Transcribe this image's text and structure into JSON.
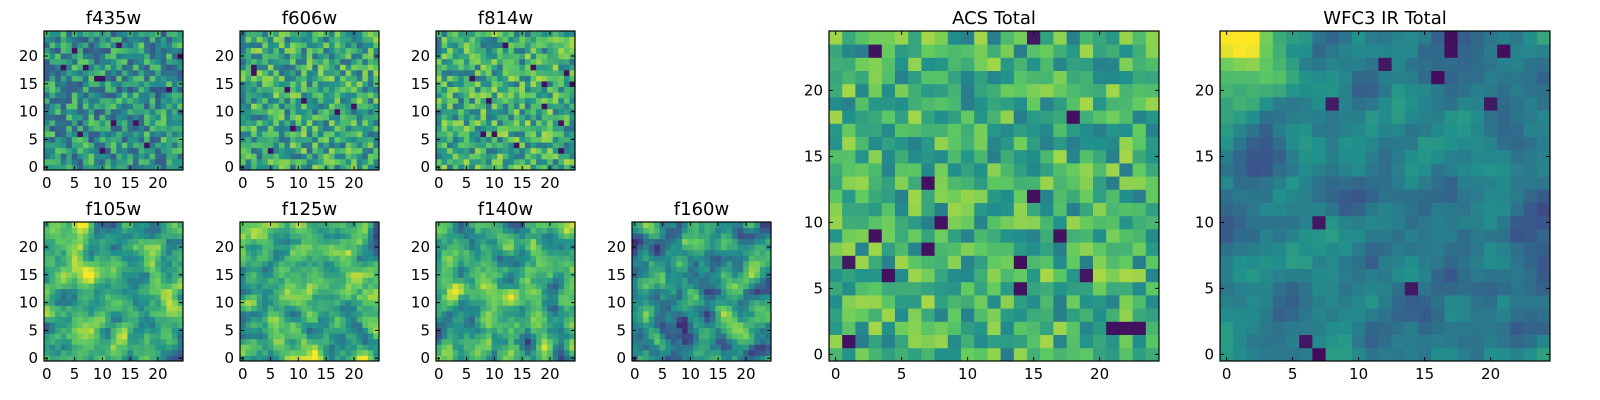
{
  "figure": {
    "colormap": "viridis",
    "colors": [
      "#440154",
      "#3b528b",
      "#21918c",
      "#5ec962",
      "#fde725"
    ]
  },
  "chart_data": [
    {
      "id": "f435w",
      "type": "heatmap",
      "title": "f435w",
      "grid_size": 25,
      "xlim": [
        0,
        25
      ],
      "ylim": [
        0,
        25
      ],
      "xticks": [
        "0",
        "5",
        "10",
        "15",
        "20"
      ],
      "yticks": [
        "0",
        "5",
        "10",
        "15",
        "20"
      ],
      "mean": 0.52,
      "spread": 0.16,
      "smooth": 0,
      "pattern": "noise",
      "seed": 11
    },
    {
      "id": "f606w",
      "type": "heatmap",
      "title": "f606w",
      "grid_size": 25,
      "xlim": [
        0,
        25
      ],
      "ylim": [
        0,
        25
      ],
      "xticks": [
        "0",
        "5",
        "10",
        "15",
        "20"
      ],
      "yticks": [
        "0",
        "5",
        "10",
        "15",
        "20"
      ],
      "mean": 0.6,
      "spread": 0.16,
      "smooth": 0,
      "pattern": "noise",
      "seed": 23
    },
    {
      "id": "f814w",
      "type": "heatmap",
      "title": "f814w",
      "grid_size": 25,
      "xlim": [
        0,
        25
      ],
      "ylim": [
        0,
        25
      ],
      "xticks": [
        "0",
        "5",
        "10",
        "15",
        "20"
      ],
      "yticks": [
        "0",
        "5",
        "10",
        "15",
        "20"
      ],
      "mean": 0.62,
      "spread": 0.16,
      "smooth": 0,
      "pattern": "noise",
      "seed": 37
    },
    {
      "id": "f105w",
      "type": "heatmap",
      "title": "f105w",
      "grid_size": 25,
      "xlim": [
        0,
        25
      ],
      "ylim": [
        0,
        25
      ],
      "xticks": [
        "0",
        "5",
        "10",
        "15",
        "20"
      ],
      "yticks": [
        "0",
        "5",
        "10",
        "15",
        "20"
      ],
      "mean": 0.62,
      "spread": 0.2,
      "smooth": 1,
      "pattern": "noise",
      "seed": 41
    },
    {
      "id": "f125w",
      "type": "heatmap",
      "title": "f125w",
      "grid_size": 25,
      "xlim": [
        0,
        25
      ],
      "ylim": [
        0,
        25
      ],
      "xticks": [
        "0",
        "5",
        "10",
        "15",
        "20"
      ],
      "yticks": [
        "0",
        "5",
        "10",
        "15",
        "20"
      ],
      "mean": 0.64,
      "spread": 0.2,
      "smooth": 1,
      "pattern": "noise",
      "seed": 53
    },
    {
      "id": "f140w",
      "type": "heatmap",
      "title": "f140w",
      "grid_size": 25,
      "xlim": [
        0,
        25
      ],
      "ylim": [
        0,
        25
      ],
      "xticks": [
        "0",
        "5",
        "10",
        "15",
        "20"
      ],
      "yticks": [
        "0",
        "5",
        "10",
        "15",
        "20"
      ],
      "mean": 0.6,
      "spread": 0.22,
      "smooth": 1,
      "pattern": "noise",
      "seed": 67
    },
    {
      "id": "f160w",
      "type": "heatmap",
      "title": "f160w",
      "grid_size": 25,
      "xlim": [
        0,
        25
      ],
      "ylim": [
        0,
        25
      ],
      "xticks": [
        "0",
        "5",
        "10",
        "15",
        "20"
      ],
      "yticks": [
        "0",
        "5",
        "10",
        "15",
        "20"
      ],
      "mean": 0.5,
      "spread": 0.22,
      "smooth": 1,
      "pattern": "noise",
      "seed": 79
    },
    {
      "id": "acs-total",
      "type": "heatmap",
      "title": "ACS Total",
      "grid_size": 25,
      "xlim": [
        0,
        25
      ],
      "ylim": [
        0,
        25
      ],
      "xticks": [
        "0",
        "5",
        "10",
        "15",
        "20"
      ],
      "yticks": [
        "0",
        "5",
        "10",
        "15",
        "20"
      ],
      "mean": 0.64,
      "spread": 0.14,
      "smooth": 0,
      "pattern": "noise",
      "seed": 97,
      "dark_cells": [
        [
          3,
          9
        ],
        [
          8,
          10
        ],
        [
          14,
          7
        ],
        [
          17,
          9
        ],
        [
          19,
          6
        ],
        [
          15,
          24
        ],
        [
          1,
          7
        ]
      ]
    },
    {
      "id": "wfc3-ir-total",
      "type": "heatmap",
      "title": "WFC3 IR Total",
      "grid_size": 25,
      "xlim": [
        0,
        25
      ],
      "ylim": [
        0,
        25
      ],
      "xticks": [
        "0",
        "5",
        "10",
        "15",
        "20"
      ],
      "yticks": [
        "0",
        "5",
        "10",
        "15",
        "20"
      ],
      "mean": 0.42,
      "spread": 0.1,
      "smooth": 1,
      "pattern": "corner-bright",
      "seed": 113,
      "dark_cells": [
        [
          7,
          10
        ],
        [
          6,
          1
        ],
        [
          7,
          0
        ],
        [
          14,
          5
        ],
        [
          17,
          24
        ],
        [
          17,
          23
        ],
        [
          21,
          23
        ],
        [
          16,
          21
        ],
        [
          20,
          19
        ],
        [
          8,
          19
        ],
        [
          12,
          22
        ]
      ]
    }
  ]
}
